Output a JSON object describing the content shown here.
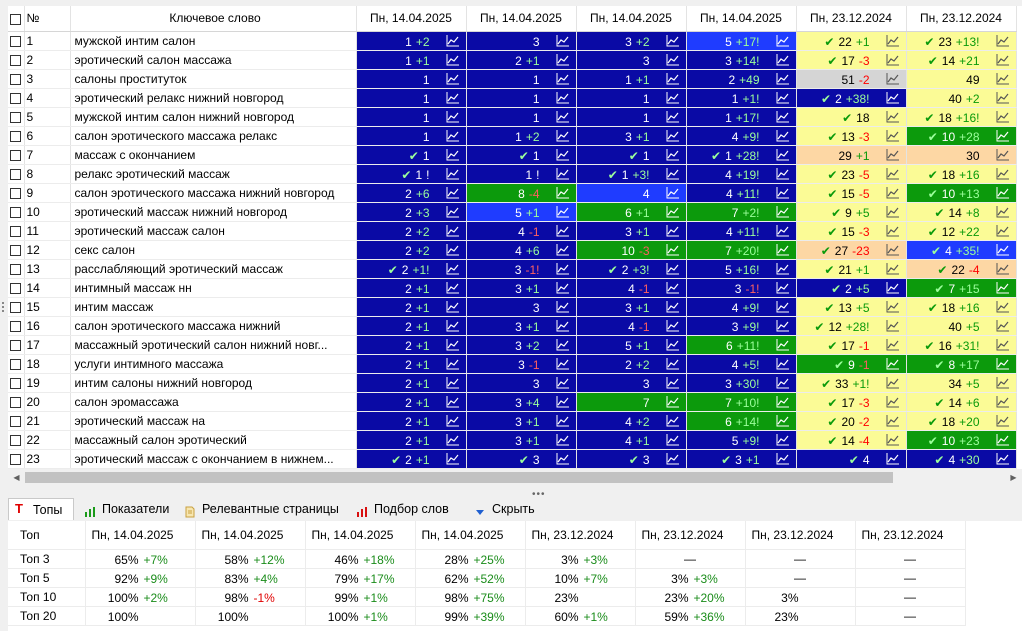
{
  "colors": {
    "navy": "#0a0aa5",
    "blue": "#1f3cff",
    "green": "#0c9a0c",
    "yellow": "#fbfb96",
    "orange": "#fdd7a4",
    "gray": "#d5d5d5",
    "delta_light_plus": "#33cc33",
    "delta_dark_minus": "#ff6060",
    "delta_light_minus": "#ff0000",
    "check_dark": "#9cff9c",
    "check_light": "#0a9a0a"
  },
  "header": {
    "num": "№",
    "keyword": "Ключевое слово",
    "dates": [
      "Пн, 14.04.2025",
      "Пн, 14.04.2025",
      "Пн, 14.04.2025",
      "Пн, 14.04.2025",
      "Пн, 23.12.2024",
      "Пн, 23.12.2024"
    ]
  },
  "rows": [
    {
      "n": "1",
      "kw": "мужской интим салон",
      "c": [
        {
          "bg": "navy",
          "v": "1",
          "d": "+2"
        },
        {
          "bg": "navy",
          "v": "3",
          "d": ""
        },
        {
          "bg": "navy",
          "v": "3",
          "d": "+2"
        },
        {
          "bg": "blue",
          "v": "5",
          "d": "+17!"
        },
        {
          "bg": "yellow",
          "ck": true,
          "v": "22",
          "d": "+1"
        },
        {
          "bg": "yellow",
          "ck": true,
          "v": "23",
          "d": "+13!"
        }
      ]
    },
    {
      "n": "2",
      "kw": "эротический салон массажа",
      "c": [
        {
          "bg": "navy",
          "v": "1",
          "d": "+1"
        },
        {
          "bg": "navy",
          "v": "2",
          "d": "+1"
        },
        {
          "bg": "navy",
          "v": "3",
          "d": ""
        },
        {
          "bg": "navy",
          "v": "3",
          "d": "+14!"
        },
        {
          "bg": "yellow",
          "ck": true,
          "v": "17",
          "d": "-3"
        },
        {
          "bg": "yellow",
          "ck": true,
          "v": "14",
          "d": "+21"
        }
      ]
    },
    {
      "n": "3",
      "kw": "салоны проституток",
      "c": [
        {
          "bg": "navy",
          "v": "1",
          "d": ""
        },
        {
          "bg": "navy",
          "v": "1",
          "d": ""
        },
        {
          "bg": "navy",
          "v": "1",
          "d": "+1"
        },
        {
          "bg": "navy",
          "v": "2",
          "d": "+49"
        },
        {
          "bg": "gray",
          "v": "51",
          "d": "-2"
        },
        {
          "bg": "yellow",
          "v": "49",
          "d": ""
        }
      ]
    },
    {
      "n": "4",
      "kw": "эротический релакс нижний новгород",
      "c": [
        {
          "bg": "navy",
          "v": "1",
          "d": ""
        },
        {
          "bg": "navy",
          "v": "1",
          "d": ""
        },
        {
          "bg": "navy",
          "v": "1",
          "d": ""
        },
        {
          "bg": "navy",
          "v": "1",
          "d": "+1!"
        },
        {
          "bg": "navy",
          "ck": true,
          "v": "2",
          "d": "+38!"
        },
        {
          "bg": "yellow",
          "v": "40",
          "d": "+2"
        }
      ]
    },
    {
      "n": "5",
      "kw": "мужской интим салон нижний новгород",
      "c": [
        {
          "bg": "navy",
          "v": "1",
          "d": ""
        },
        {
          "bg": "navy",
          "v": "1",
          "d": ""
        },
        {
          "bg": "navy",
          "v": "1",
          "d": ""
        },
        {
          "bg": "navy",
          "v": "1",
          "d": "+17!"
        },
        {
          "bg": "yellow",
          "ck": true,
          "v": "18",
          "d": ""
        },
        {
          "bg": "yellow",
          "ck": true,
          "v": "18",
          "d": "+16!"
        }
      ]
    },
    {
      "n": "6",
      "kw": "салон эротического массажа релакс",
      "c": [
        {
          "bg": "navy",
          "v": "1",
          "d": ""
        },
        {
          "bg": "navy",
          "v": "1",
          "d": "+2"
        },
        {
          "bg": "navy",
          "v": "3",
          "d": "+1"
        },
        {
          "bg": "navy",
          "v": "4",
          "d": "+9!"
        },
        {
          "bg": "yellow",
          "ck": true,
          "v": "13",
          "d": "-3"
        },
        {
          "bg": "green",
          "ck": true,
          "v": "10",
          "d": "+28"
        }
      ]
    },
    {
      "n": "7",
      "kw": "массаж с окончанием",
      "c": [
        {
          "bg": "navy",
          "ck": true,
          "v": "1",
          "d": ""
        },
        {
          "bg": "navy",
          "ck": true,
          "v": "1",
          "d": ""
        },
        {
          "bg": "navy",
          "ck": true,
          "v": "1",
          "d": ""
        },
        {
          "bg": "navy",
          "ck": true,
          "v": "1",
          "d": "+28!"
        },
        {
          "bg": "orange",
          "v": "29",
          "d": "+1"
        },
        {
          "bg": "orange",
          "v": "30",
          "d": ""
        }
      ]
    },
    {
      "n": "8",
      "kw": "релакс эротический массаж",
      "c": [
        {
          "bg": "navy",
          "ck": true,
          "v": "1",
          "d": "!"
        },
        {
          "bg": "navy",
          "v": "1",
          "d": "!"
        },
        {
          "bg": "navy",
          "ck": true,
          "v": "1",
          "d": "+3!"
        },
        {
          "bg": "navy",
          "v": "4",
          "d": "+19!"
        },
        {
          "bg": "yellow",
          "ck": true,
          "v": "23",
          "d": "-5"
        },
        {
          "bg": "yellow",
          "ck": true,
          "v": "18",
          "d": "+16"
        }
      ]
    },
    {
      "n": "9",
      "kw": "салон эротического массажа нижний новгород",
      "c": [
        {
          "bg": "navy",
          "v": "2",
          "d": "+6"
        },
        {
          "bg": "green",
          "v": "8",
          "d": "-4"
        },
        {
          "bg": "blue",
          "v": "4",
          "d": ""
        },
        {
          "bg": "navy",
          "v": "4",
          "d": "+11!"
        },
        {
          "bg": "yellow",
          "ck": true,
          "v": "15",
          "d": "-5"
        },
        {
          "bg": "green",
          "ck": true,
          "v": "10",
          "d": "+13"
        }
      ]
    },
    {
      "n": "10",
      "kw": "эротический массаж нижний новгород",
      "c": [
        {
          "bg": "navy",
          "v": "2",
          "d": "+3"
        },
        {
          "bg": "blue",
          "v": "5",
          "d": "+1"
        },
        {
          "bg": "green",
          "v": "6",
          "d": "+1"
        },
        {
          "bg": "green",
          "v": "7",
          "d": "+2!"
        },
        {
          "bg": "yellow",
          "ck": true,
          "v": "9",
          "d": "+5"
        },
        {
          "bg": "yellow",
          "ck": true,
          "v": "14",
          "d": "+8"
        }
      ]
    },
    {
      "n": "11",
      "kw": "эротический массаж салон",
      "c": [
        {
          "bg": "navy",
          "v": "2",
          "d": "+2"
        },
        {
          "bg": "navy",
          "v": "4",
          "d": "-1"
        },
        {
          "bg": "navy",
          "v": "3",
          "d": "+1"
        },
        {
          "bg": "navy",
          "v": "4",
          "d": "+11!"
        },
        {
          "bg": "yellow",
          "ck": true,
          "v": "15",
          "d": "-3"
        },
        {
          "bg": "yellow",
          "ck": true,
          "v": "12",
          "d": "+22"
        }
      ]
    },
    {
      "n": "12",
      "kw": "секс салон",
      "c": [
        {
          "bg": "navy",
          "v": "2",
          "d": "+2"
        },
        {
          "bg": "navy",
          "v": "4",
          "d": "+6"
        },
        {
          "bg": "green",
          "v": "10",
          "d": "-3"
        },
        {
          "bg": "green",
          "v": "7",
          "d": "+20!"
        },
        {
          "bg": "orange",
          "ck": true,
          "v": "27",
          "d": "-23"
        },
        {
          "bg": "blue",
          "ck": true,
          "v": "4",
          "d": "+35!"
        }
      ]
    },
    {
      "n": "13",
      "kw": "расслабляющий эротический массаж",
      "c": [
        {
          "bg": "navy",
          "ck": true,
          "v": "2",
          "d": "+1!"
        },
        {
          "bg": "navy",
          "v": "3",
          "d": "-1!"
        },
        {
          "bg": "navy",
          "ck": true,
          "v": "2",
          "d": "+3!"
        },
        {
          "bg": "navy",
          "v": "5",
          "d": "+16!"
        },
        {
          "bg": "yellow",
          "ck": true,
          "v": "21",
          "d": "+1"
        },
        {
          "bg": "orange",
          "ck": true,
          "v": "22",
          "d": "-4"
        }
      ]
    },
    {
      "n": "14",
      "kw": "интимный массаж нн",
      "c": [
        {
          "bg": "navy",
          "v": "2",
          "d": "+1"
        },
        {
          "bg": "navy",
          "v": "3",
          "d": "+1"
        },
        {
          "bg": "navy",
          "v": "4",
          "d": "-1"
        },
        {
          "bg": "navy",
          "v": "3",
          "d": "-1!"
        },
        {
          "bg": "navy",
          "ck": true,
          "v": "2",
          "d": "+5"
        },
        {
          "bg": "green",
          "ck": true,
          "v": "7",
          "d": "+15"
        }
      ]
    },
    {
      "n": "15",
      "kw": "интим массаж",
      "c": [
        {
          "bg": "navy",
          "v": "2",
          "d": "+1"
        },
        {
          "bg": "navy",
          "v": "3",
          "d": ""
        },
        {
          "bg": "navy",
          "v": "3",
          "d": "+1"
        },
        {
          "bg": "navy",
          "v": "4",
          "d": "+9!"
        },
        {
          "bg": "yellow",
          "ck": true,
          "v": "13",
          "d": "+5"
        },
        {
          "bg": "yellow",
          "ck": true,
          "v": "18",
          "d": "+16"
        }
      ]
    },
    {
      "n": "16",
      "kw": "салон эротического массажа нижний",
      "c": [
        {
          "bg": "navy",
          "v": "2",
          "d": "+1"
        },
        {
          "bg": "navy",
          "v": "3",
          "d": "+1"
        },
        {
          "bg": "navy",
          "v": "4",
          "d": "-1"
        },
        {
          "bg": "navy",
          "v": "3",
          "d": "+9!"
        },
        {
          "bg": "yellow",
          "ck": true,
          "v": "12",
          "d": "+28!"
        },
        {
          "bg": "yellow",
          "v": "40",
          "d": "+5"
        }
      ]
    },
    {
      "n": "17",
      "kw": "массажный эротический салон нижний новг...",
      "c": [
        {
          "bg": "navy",
          "v": "2",
          "d": "+1"
        },
        {
          "bg": "navy",
          "v": "3",
          "d": "+2"
        },
        {
          "bg": "navy",
          "v": "5",
          "d": "+1"
        },
        {
          "bg": "green",
          "v": "6",
          "d": "+11!"
        },
        {
          "bg": "yellow",
          "ck": true,
          "v": "17",
          "d": "-1"
        },
        {
          "bg": "yellow",
          "ck": true,
          "v": "16",
          "d": "+31!"
        }
      ]
    },
    {
      "n": "18",
      "kw": "услуги интимного массажа",
      "c": [
        {
          "bg": "navy",
          "v": "2",
          "d": "+1"
        },
        {
          "bg": "navy",
          "v": "3",
          "d": "-1"
        },
        {
          "bg": "navy",
          "v": "2",
          "d": "+2"
        },
        {
          "bg": "navy",
          "v": "4",
          "d": "+5!"
        },
        {
          "bg": "green",
          "ck": true,
          "v": "9",
          "d": "-1"
        },
        {
          "bg": "green",
          "ck": true,
          "v": "8",
          "d": "+17"
        }
      ]
    },
    {
      "n": "19",
      "kw": "интим салоны нижний новгород",
      "c": [
        {
          "bg": "navy",
          "v": "2",
          "d": "+1"
        },
        {
          "bg": "navy",
          "v": "3",
          "d": ""
        },
        {
          "bg": "navy",
          "v": "3",
          "d": ""
        },
        {
          "bg": "navy",
          "v": "3",
          "d": "+30!"
        },
        {
          "bg": "yellow",
          "ck": true,
          "v": "33",
          "d": "+1!"
        },
        {
          "bg": "yellow",
          "v": "34",
          "d": "+5"
        }
      ]
    },
    {
      "n": "20",
      "kw": "салон эромассажа",
      "c": [
        {
          "bg": "navy",
          "v": "2",
          "d": "+1"
        },
        {
          "bg": "navy",
          "v": "3",
          "d": "+4"
        },
        {
          "bg": "green",
          "v": "7",
          "d": ""
        },
        {
          "bg": "green",
          "v": "7",
          "d": "+10!"
        },
        {
          "bg": "yellow",
          "ck": true,
          "v": "17",
          "d": "-3"
        },
        {
          "bg": "yellow",
          "ck": true,
          "v": "14",
          "d": "+6"
        }
      ]
    },
    {
      "n": "21",
      "kw": "эротический массаж на",
      "c": [
        {
          "bg": "navy",
          "v": "2",
          "d": "+1"
        },
        {
          "bg": "navy",
          "v": "3",
          "d": "+1"
        },
        {
          "bg": "navy",
          "v": "4",
          "d": "+2"
        },
        {
          "bg": "green",
          "v": "6",
          "d": "+14!"
        },
        {
          "bg": "yellow",
          "ck": true,
          "v": "20",
          "d": "-2"
        },
        {
          "bg": "yellow",
          "ck": true,
          "v": "18",
          "d": "+20"
        }
      ]
    },
    {
      "n": "22",
      "kw": "массажный салон эротический",
      "c": [
        {
          "bg": "navy",
          "v": "2",
          "d": "+1"
        },
        {
          "bg": "navy",
          "v": "3",
          "d": "+1"
        },
        {
          "bg": "navy",
          "v": "4",
          "d": "+1"
        },
        {
          "bg": "navy",
          "v": "5",
          "d": "+9!"
        },
        {
          "bg": "yellow",
          "ck": true,
          "v": "14",
          "d": "-4"
        },
        {
          "bg": "green",
          "ck": true,
          "v": "10",
          "d": "+23"
        }
      ]
    },
    {
      "n": "23",
      "kw": "эротический массаж с окончанием в нижнем...",
      "c": [
        {
          "bg": "navy",
          "ck": true,
          "v": "2",
          "d": "+1"
        },
        {
          "bg": "navy",
          "ck": true,
          "v": "3",
          "d": ""
        },
        {
          "bg": "navy",
          "ck": true,
          "v": "3",
          "d": ""
        },
        {
          "bg": "navy",
          "ck": true,
          "v": "3",
          "d": "+1"
        },
        {
          "bg": "navy",
          "ck": true,
          "v": "4",
          "d": ""
        },
        {
          "bg": "navy",
          "ck": true,
          "v": "4",
          "d": "+30"
        }
      ]
    }
  ],
  "tabs": [
    {
      "label": "Топы",
      "icon": "top-letter-icon",
      "active": true
    },
    {
      "label": "Показатели",
      "icon": "bar-chart-icon",
      "active": false
    },
    {
      "label": "Релевантные страницы",
      "icon": "document-icon",
      "active": false
    },
    {
      "label": "Подбор слов",
      "icon": "bar-chart-red-icon",
      "active": false
    },
    {
      "label": "Скрыть",
      "icon": "triangle-down-icon",
      "active": false
    }
  ],
  "tops": {
    "label_header": "Топ",
    "dates": [
      "Пн, 14.04.2025",
      "Пн, 14.04.2025",
      "Пн, 14.04.2025",
      "Пн, 14.04.2025",
      "Пн, 23.12.2024",
      "Пн, 23.12.2024",
      "Пн, 23.12.2024",
      "Пн, 23.12.2024"
    ],
    "rows": [
      {
        "label": "Топ 3",
        "cells": [
          {
            "v": "65%",
            "d": "+7%"
          },
          {
            "v": "58%",
            "d": "+12%"
          },
          {
            "v": "46%",
            "d": "+18%"
          },
          {
            "v": "28%",
            "d": "+25%"
          },
          {
            "v": "3%",
            "d": "+3%"
          },
          {
            "v": "—",
            "d": ""
          },
          {
            "v": "—",
            "d": ""
          },
          {
            "v": "—",
            "d": ""
          }
        ]
      },
      {
        "label": "Топ 5",
        "cells": [
          {
            "v": "92%",
            "d": "+9%"
          },
          {
            "v": "83%",
            "d": "+4%"
          },
          {
            "v": "79%",
            "d": "+17%"
          },
          {
            "v": "62%",
            "d": "+52%"
          },
          {
            "v": "10%",
            "d": "+7%"
          },
          {
            "v": "3%",
            "d": "+3%"
          },
          {
            "v": "—",
            "d": ""
          },
          {
            "v": "—",
            "d": ""
          }
        ]
      },
      {
        "label": "Топ 10",
        "cells": [
          {
            "v": "100%",
            "d": "+2%"
          },
          {
            "v": "98%",
            "d": "-1%"
          },
          {
            "v": "99%",
            "d": "+1%"
          },
          {
            "v": "98%",
            "d": "+75%"
          },
          {
            "v": "23%",
            "d": ""
          },
          {
            "v": "23%",
            "d": "+20%"
          },
          {
            "v": "3%",
            "d": ""
          },
          {
            "v": "—",
            "d": ""
          }
        ]
      },
      {
        "label": "Топ 20",
        "cells": [
          {
            "v": "100%",
            "d": ""
          },
          {
            "v": "100%",
            "d": ""
          },
          {
            "v": "100%",
            "d": "+1%"
          },
          {
            "v": "99%",
            "d": "+39%"
          },
          {
            "v": "60%",
            "d": "+1%"
          },
          {
            "v": "59%",
            "d": "+36%"
          },
          {
            "v": "23%",
            "d": ""
          },
          {
            "v": "—",
            "d": ""
          }
        ]
      }
    ]
  }
}
